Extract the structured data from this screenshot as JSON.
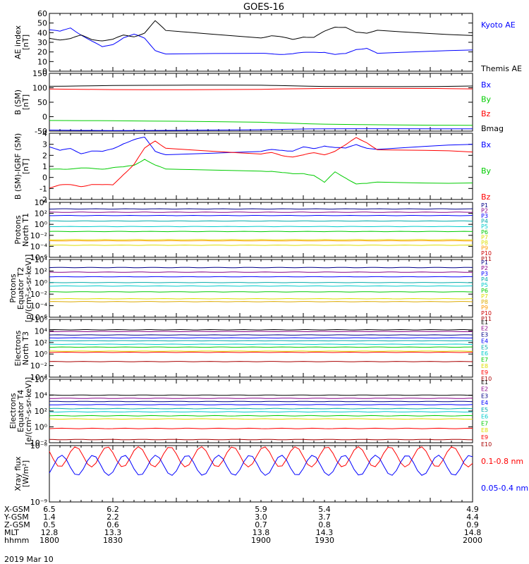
{
  "title": "GOES-16",
  "date_label": "2019 Mar 10",
  "colors": {
    "black": "#000000",
    "blue": "#0000ff",
    "green": "#00cc00",
    "red": "#ff0000",
    "navy": "#000088",
    "purple": "#880088",
    "cyan": "#00cccc",
    "teal": "#00aaaa",
    "yellow": "#dddd00",
    "orange": "#ff9900",
    "gold": "#ddaa00",
    "darkred": "#cc0000",
    "maroon": "#aa0000"
  },
  "xaxis": {
    "rows": [
      {
        "label": "X-GSM",
        "values": [
          "6.5",
          "6.2",
          "5.9",
          "5.4",
          "4.9"
        ]
      },
      {
        "label": "Y-GSM",
        "values": [
          "1.4",
          "2.2",
          "3.0",
          "3.7",
          "4.4"
        ]
      },
      {
        "label": "Z-GSM",
        "values": [
          "0.5",
          "0.6",
          "0.7",
          "0.8",
          "0.9"
        ]
      },
      {
        "label": "MLT",
        "values": [
          "12.8",
          "13.3",
          "13.8",
          "14.3",
          "14.8"
        ]
      },
      {
        "label": "hhmm",
        "values": [
          "1800",
          "1830",
          "1900",
          "1930",
          "2000"
        ]
      }
    ]
  },
  "chart_data": [
    {
      "type": "line",
      "ylabel": "AE index\n[nT]",
      "ylim": [
        0,
        60
      ],
      "yticks": [
        "0",
        "10",
        "20",
        "30",
        "40",
        "50",
        "60"
      ],
      "x": [
        1800,
        1805,
        1810,
        1815,
        1820,
        1825,
        1830,
        1835,
        1840,
        1845,
        1850,
        1855,
        1900,
        1905,
        1910,
        1915,
        1920,
        1925,
        1930,
        1935,
        1940,
        1945,
        1950,
        1955,
        2000
      ],
      "series": [
        {
          "name": "Kyoto AE",
          "color": "blue",
          "values": [
            43,
            41,
            45,
            38,
            31,
            25,
            28,
            35,
            38,
            34,
            22,
            18,
            18,
            18,
            18,
            18,
            19,
            20,
            20,
            17,
            18,
            23,
            24,
            18,
            22
          ]
        },
        {
          "name": "Themis AE",
          "color": "black",
          "values": [
            34,
            33,
            34,
            37,
            33,
            32,
            33,
            37,
            36,
            40,
            52,
            42,
            35,
            37,
            35,
            33,
            36,
            35,
            41,
            46,
            46,
            40,
            39,
            43,
            37
          ]
        }
      ]
    },
    {
      "type": "line",
      "ylabel": "B (SM)\n[nT]",
      "ylim": [
        -50,
        150
      ],
      "yticks": [
        "-50",
        "0",
        "50",
        "100",
        "150"
      ],
      "x": [
        1800,
        1830,
        1900,
        1930,
        2000
      ],
      "series": [
        {
          "name": "Bx",
          "color": "blue",
          "values": [
            -47,
            -46,
            -45,
            -44,
            -42
          ]
        },
        {
          "name": "By",
          "color": "green",
          "values": [
            -12,
            -16,
            -20,
            -24,
            -30
          ]
        },
        {
          "name": "Bz",
          "color": "red",
          "values": [
            94,
            95,
            96,
            96,
            96
          ]
        },
        {
          "name": "Bmag",
          "color": "black",
          "values": [
            107,
            107,
            107,
            106,
            106
          ]
        }
      ]
    },
    {
      "type": "line",
      "ylabel": "B (SM)-IGRF (SM)\n[nT]",
      "ylim": [
        -2,
        4
      ],
      "yticks": [
        "-2",
        "-1",
        "0",
        "1",
        "2",
        "3",
        "4"
      ],
      "x": [
        1800,
        1805,
        1810,
        1815,
        1820,
        1825,
        1830,
        1835,
        1840,
        1845,
        1850,
        1855,
        1900,
        1905,
        1910,
        1915,
        1920,
        1925,
        1930,
        1935,
        1940,
        1945,
        1950,
        1955,
        2000
      ],
      "series": [
        {
          "name": "Bx",
          "color": "blue",
          "values": [
            2.8,
            2.4,
            2.6,
            2.2,
            2.4,
            2.3,
            2.6,
            3.1,
            3.4,
            3.6,
            2.4,
            2.1,
            2.3,
            2.5,
            2.5,
            2.4,
            2.7,
            2.6,
            2.9,
            2.7,
            2.6,
            3.0,
            2.7,
            2.5,
            3.0
          ]
        },
        {
          "name": "By",
          "color": "green",
          "values": [
            0.7,
            0.8,
            0.8,
            0.8,
            0.8,
            0.8,
            0.9,
            0.9,
            1.1,
            1.7,
            1.1,
            0.7,
            0.6,
            0.6,
            0.4,
            0.3,
            0.4,
            0.2,
            -0.5,
            0.5,
            0.0,
            -0.6,
            -0.6,
            -0.4,
            -0.5
          ]
        },
        {
          "name": "Bz",
          "color": "red",
          "values": [
            -0.9,
            -0.7,
            -0.7,
            -0.8,
            -0.6,
            -0.7,
            -0.7,
            0.3,
            1.2,
            2.6,
            3.3,
            2.7,
            2.1,
            2.2,
            2.0,
            1.9,
            2.0,
            2.2,
            2.1,
            2.4,
            2.9,
            3.6,
            3.2,
            2.5,
            2.3
          ]
        }
      ]
    },
    {
      "type": "line",
      "log": true,
      "ylabel": "Protons\nNorth T1",
      "ylim": [
        -6,
        4
      ],
      "yticks": [
        "10⁻⁶",
        "10⁻⁴",
        "10⁻²",
        "10⁰",
        "10²",
        "10⁴"
      ],
      "series": [
        {
          "name": "P1",
          "color": "navy",
          "level": 2.8
        },
        {
          "name": "P2",
          "color": "purple",
          "level": 2.2
        },
        {
          "name": "P3",
          "color": "blue",
          "level": 1.6
        },
        {
          "name": "P4",
          "color": "teal",
          "level": 0.6
        },
        {
          "name": "P5",
          "color": "cyan",
          "level": -0.4
        },
        {
          "name": "P6",
          "color": "green",
          "level": -1.3
        },
        {
          "name": "P7",
          "color": "yellow",
          "level": -2.8
        },
        {
          "name": "P8",
          "color": "yellow",
          "level": -3.8
        },
        {
          "name": "P9",
          "color": "orange",
          "level": -3.0
        },
        {
          "name": "P10",
          "color": "darkred",
          "level": -6
        },
        {
          "name": "P11",
          "color": "maroon",
          "level": -6
        }
      ]
    },
    {
      "type": "line",
      "log": true,
      "ylabel": "Protons\nEquator T2\n[p/(cm²-s-sr-keV)]",
      "ylim": [
        -6,
        4
      ],
      "yticks": [
        "10⁻⁶",
        "10⁻⁴",
        "10⁻²",
        "10⁰",
        "10²",
        "10⁴"
      ],
      "series": [
        {
          "name": "P1",
          "color": "navy",
          "level": 2.6
        },
        {
          "name": "P2",
          "color": "purple",
          "level": 1.8
        },
        {
          "name": "P3",
          "color": "blue",
          "level": 1.0
        },
        {
          "name": "P4",
          "color": "teal",
          "level": 0.0
        },
        {
          "name": "P5",
          "color": "cyan",
          "level": -0.6
        },
        {
          "name": "P6",
          "color": "green",
          "level": -1.6
        },
        {
          "name": "P7",
          "color": "yellow",
          "level": -2.8
        },
        {
          "name": "P8",
          "color": "gold",
          "level": -3.3
        },
        {
          "name": "P9",
          "color": "orange",
          "level": -6
        },
        {
          "name": "P10",
          "color": "darkred",
          "level": -6
        },
        {
          "name": "P11",
          "color": "maroon",
          "level": -6
        }
      ]
    },
    {
      "type": "line",
      "log": true,
      "ylabel": "Electrons\nNorth T3",
      "ylim": [
        -4,
        6
      ],
      "yticks": [
        "10⁻⁴",
        "10⁻²",
        "10⁰",
        "10²",
        "10⁴",
        "10⁶"
      ],
      "series": [
        {
          "name": "E1",
          "color": "black",
          "level": 4.2
        },
        {
          "name": "E2",
          "color": "purple",
          "level": 3.9
        },
        {
          "name": "E3",
          "color": "navy",
          "level": 3.3
        },
        {
          "name": "E4",
          "color": "blue",
          "level": 2.8
        },
        {
          "name": "E5",
          "color": "teal",
          "level": 2.3
        },
        {
          "name": "E6",
          "color": "cyan",
          "level": 1.7
        },
        {
          "name": "E7",
          "color": "green",
          "level": 1.2
        },
        {
          "name": "E8",
          "color": "yellow",
          "level": 0.5
        },
        {
          "name": "E9",
          "color": "red",
          "level": 0.3
        },
        {
          "name": "E10",
          "color": "maroon",
          "level": -1.3
        }
      ]
    },
    {
      "type": "line",
      "log": true,
      "ylabel": "Electrons\nEquator T4\n[e/(cm²-s-sr-keV)]",
      "ylim": [
        -2,
        6
      ],
      "yticks": [
        "10⁻²",
        "10⁰",
        "10²",
        "10⁴",
        "10⁶"
      ],
      "series": [
        {
          "name": "E1",
          "color": "black",
          "level": 4.0
        },
        {
          "name": "E2",
          "color": "purple",
          "level": 3.6
        },
        {
          "name": "E3",
          "color": "navy",
          "level": 3.2
        },
        {
          "name": "E4",
          "color": "blue",
          "level": 2.8
        },
        {
          "name": "E5",
          "color": "teal",
          "level": 2.3
        },
        {
          "name": "E6",
          "color": "cyan",
          "level": 1.9
        },
        {
          "name": "E7",
          "color": "green",
          "level": 1.4
        },
        {
          "name": "E8",
          "color": "yellow",
          "level": 1.0
        },
        {
          "name": "E9",
          "color": "red",
          "level": -0.2
        },
        {
          "name": "E10",
          "color": "maroon",
          "level": -1.6
        }
      ]
    },
    {
      "type": "line",
      "log": true,
      "ylabel": "Xray flux\n[W/m²]",
      "ylim": [
        -9,
        -8
      ],
      "yticks": [
        "10⁻⁹",
        "10⁻⁸"
      ],
      "series": [
        {
          "name": "0.1-0.8 nm",
          "color": "red",
          "level": -8.2
        },
        {
          "name": "0.05-0.4 nm",
          "color": "blue",
          "level": -8.35
        }
      ]
    }
  ]
}
